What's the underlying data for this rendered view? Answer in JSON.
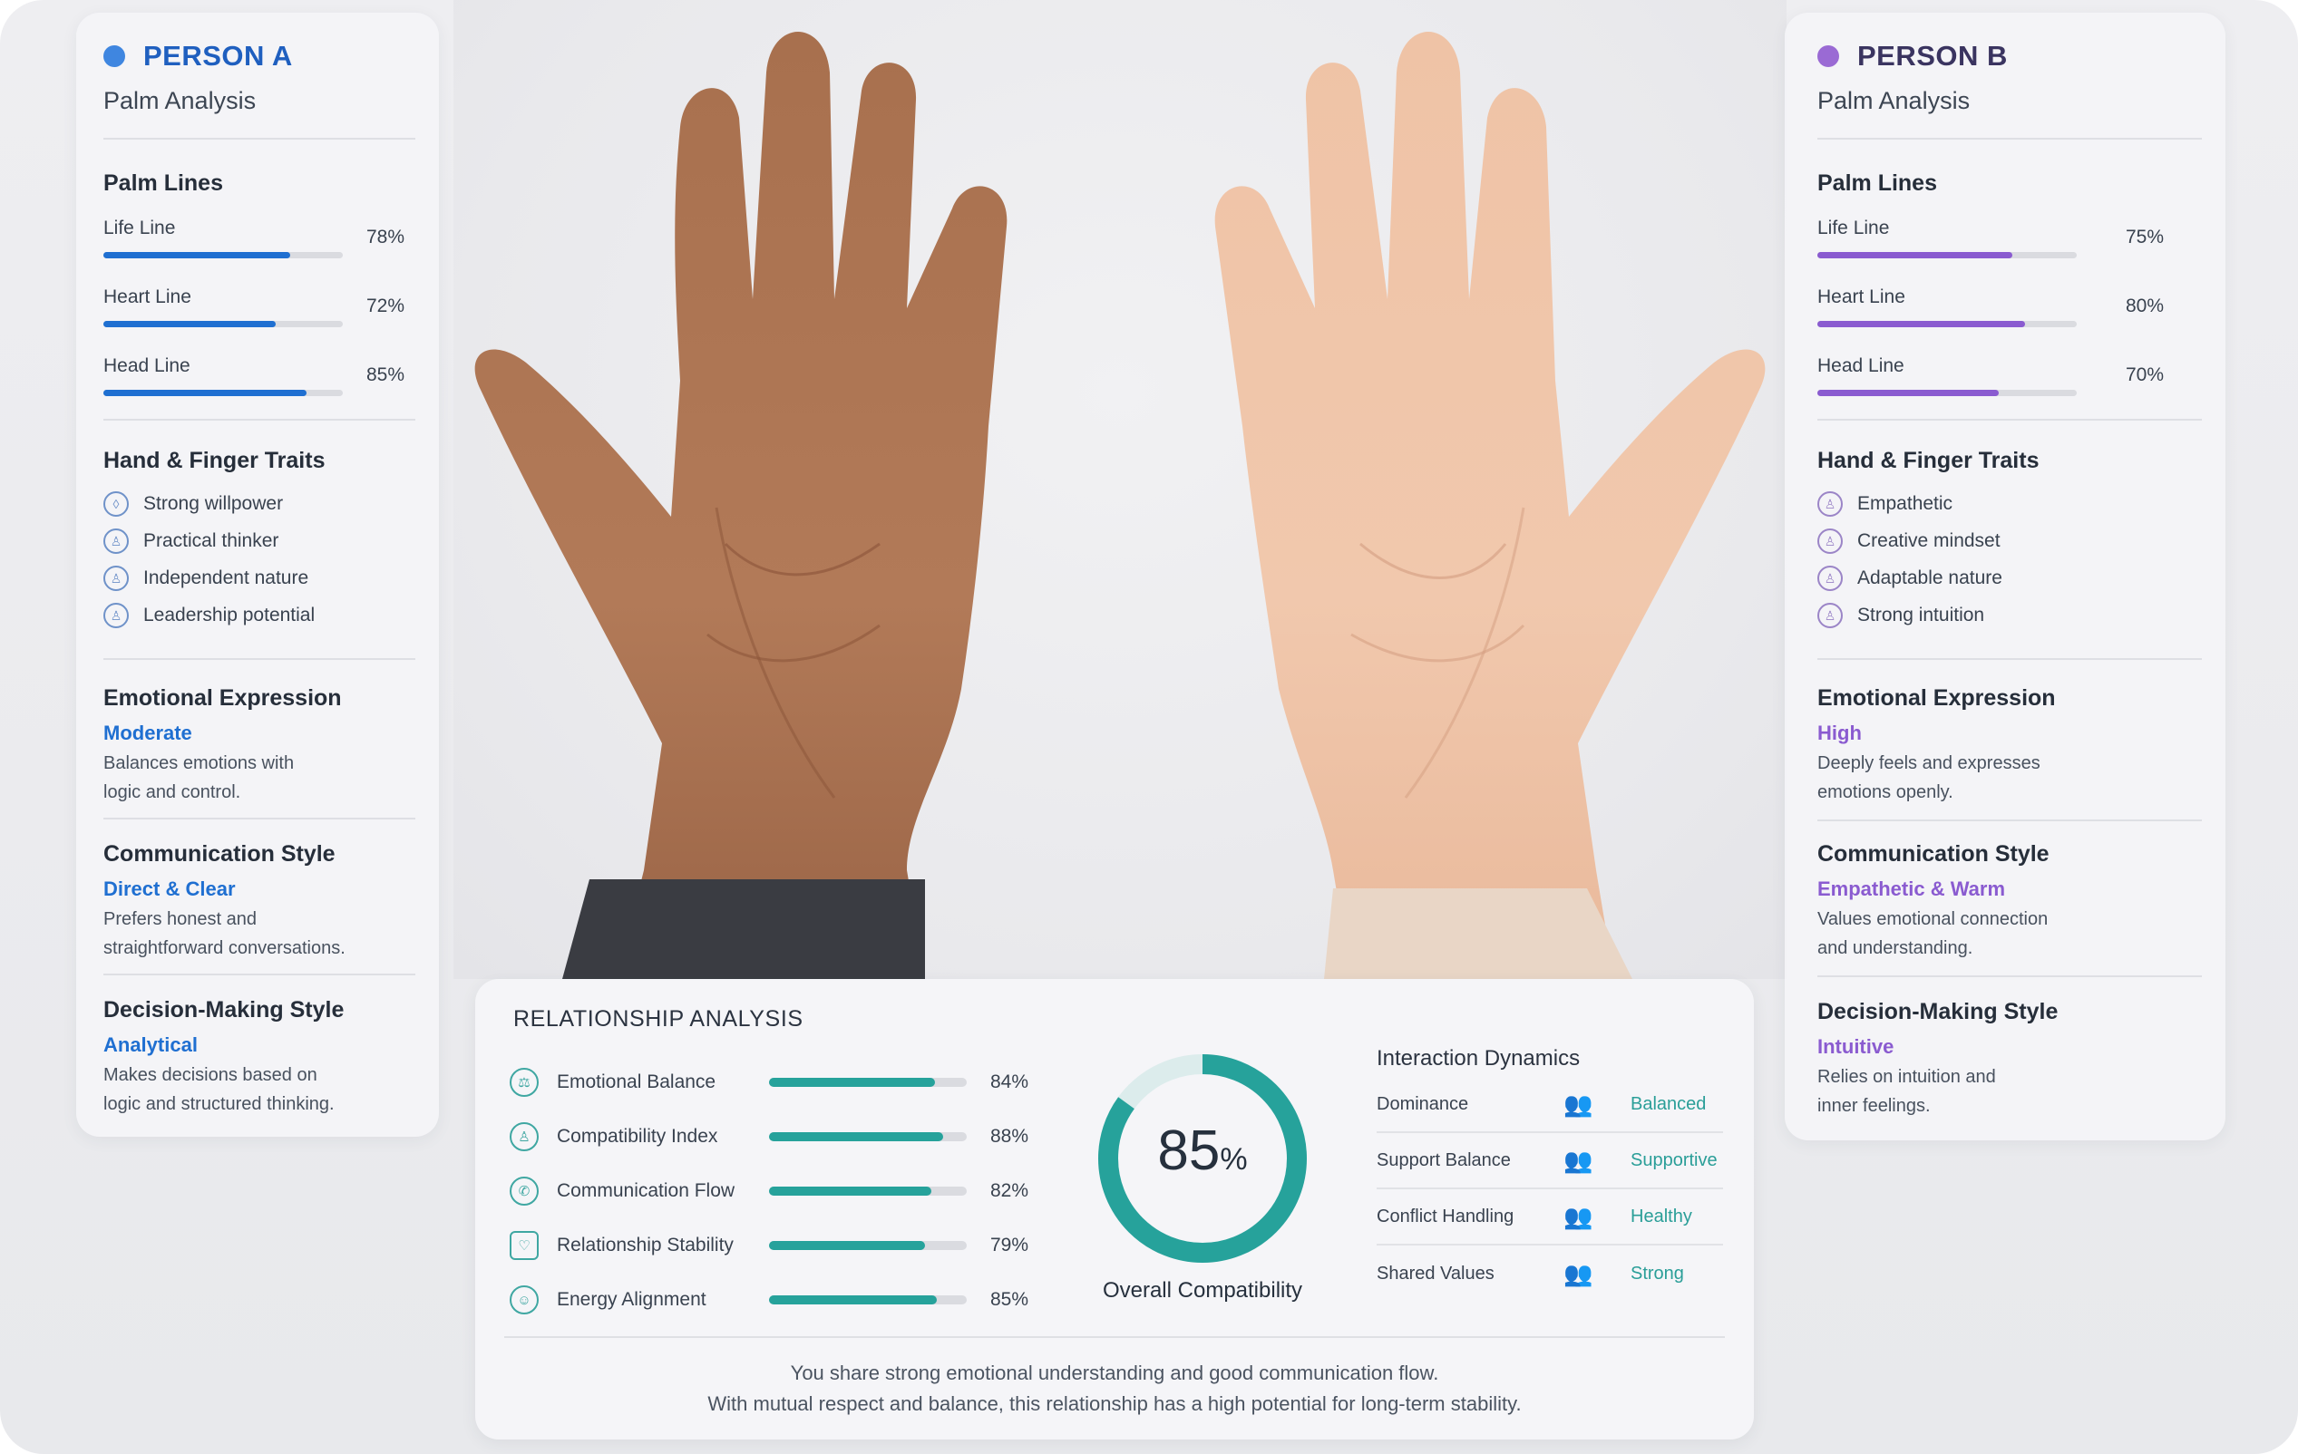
{
  "colors": {
    "person_a": "#1f6fd1",
    "person_b": "#8a5bd0",
    "teal": "#26a29b"
  },
  "person_a": {
    "name": "PERSON A",
    "subtitle": "Palm Analysis",
    "palm_lines_title": "Palm Lines",
    "palm_lines": [
      {
        "label": "Life Line",
        "value": 78,
        "value_label": "78%"
      },
      {
        "label": "Heart Line",
        "value": 72,
        "value_label": "72%"
      },
      {
        "label": "Head Line",
        "value": 85,
        "value_label": "85%"
      }
    ],
    "traits_title": "Hand & Finger Traits",
    "traits": [
      "Strong willpower",
      "Practical thinker",
      "Independent nature",
      "Leadership potential"
    ],
    "emotional": {
      "title": "Emotional Expression",
      "value": "Moderate",
      "desc_1": "Balances emotions with",
      "desc_2": "logic and control."
    },
    "communication": {
      "title": "Communication Style",
      "value": "Direct & Clear",
      "desc_1": "Prefers honest and",
      "desc_2": "straightforward conversations."
    },
    "decision": {
      "title": "Decision-Making Style",
      "value": "Analytical",
      "desc_1": "Makes decisions based on",
      "desc_2": "logic and structured thinking."
    }
  },
  "person_b": {
    "name": "PERSON B",
    "subtitle": "Palm Analysis",
    "palm_lines_title": "Palm Lines",
    "palm_lines": [
      {
        "label": "Life Line",
        "value": 75,
        "value_label": "75%"
      },
      {
        "label": "Heart Line",
        "value": 80,
        "value_label": "80%"
      },
      {
        "label": "Head Line",
        "value": 70,
        "value_label": "70%"
      }
    ],
    "traits_title": "Hand & Finger Traits",
    "traits": [
      "Empathetic",
      "Creative mindset",
      "Adaptable nature",
      "Strong intuition"
    ],
    "emotional": {
      "title": "Emotional Expression",
      "value": "High",
      "desc_1": "Deeply feels and expresses",
      "desc_2": "emotions openly."
    },
    "communication": {
      "title": "Communication Style",
      "value": "Empathetic & Warm",
      "desc_1": "Values emotional connection",
      "desc_2": "and understanding."
    },
    "decision": {
      "title": "Decision-Making Style",
      "value": "Intuitive",
      "desc_1": "Relies on intuition and",
      "desc_2": "inner feelings."
    }
  },
  "relationship": {
    "title": "RELATIONSHIP ANALYSIS",
    "metrics": [
      {
        "label": "Emotional Balance",
        "value": 84,
        "value_label": "84%",
        "icon": "balance-icon"
      },
      {
        "label": "Compatibility Index",
        "value": 88,
        "value_label": "88%",
        "icon": "compatibility-icon"
      },
      {
        "label": "Communication Flow",
        "value": 82,
        "value_label": "82%",
        "icon": "chat-icon"
      },
      {
        "label": "Relationship Stability",
        "value": 79,
        "value_label": "79%",
        "icon": "shield-icon"
      },
      {
        "label": "Energy Alignment",
        "value": 85,
        "value_label": "85%",
        "icon": "energy-icon"
      }
    ],
    "overall": {
      "value": 85,
      "number": "85",
      "unit": "%",
      "label": "Overall Compatibility"
    },
    "dynamics": {
      "title": "Interaction Dynamics",
      "rows": [
        {
          "label": "Dominance",
          "value": "Balanced"
        },
        {
          "label": "Support Balance",
          "value": "Supportive"
        },
        {
          "label": "Conflict Handling",
          "value": "Healthy"
        },
        {
          "label": "Shared Values",
          "value": "Strong"
        }
      ]
    },
    "summary_1": "You share strong emotional understanding and good communication flow.",
    "summary_2": "With mutual respect and balance, this relationship has a high potential for long-term stability."
  }
}
